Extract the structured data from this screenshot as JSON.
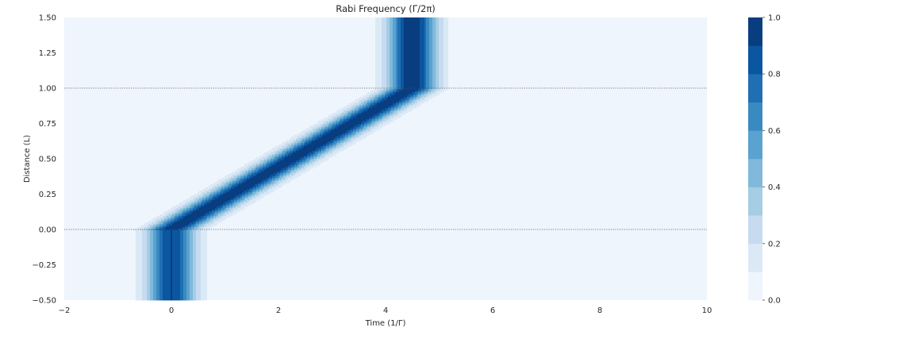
{
  "chart_data": {
    "type": "heatmap",
    "subtype": "filled-contour",
    "title": "Rabi Frequency (Γ/2π)",
    "xlabel": "Time (1/Γ)",
    "ylabel": "Distance (L)",
    "xlim": [
      -2,
      10
    ],
    "ylim": [
      -0.5,
      1.5
    ],
    "x_ticks": [
      -2,
      0,
      2,
      4,
      6,
      8,
      10
    ],
    "y_ticks": [
      -0.5,
      -0.25,
      0.0,
      0.25,
      0.5,
      0.75,
      1.0,
      1.25,
      1.5
    ],
    "x_tick_labels": [
      "−2",
      "0",
      "2",
      "4",
      "6",
      "8",
      "10"
    ],
    "y_tick_labels": [
      "−0.50",
      "−0.25",
      "0.00",
      "0.25",
      "0.50",
      "0.75",
      "1.00",
      "1.25",
      "1.50"
    ],
    "colormap": "Blues",
    "contour_levels": [
      0.0,
      0.1,
      0.2,
      0.3,
      0.4,
      0.5,
      0.6,
      0.7,
      0.8,
      0.9,
      1.0
    ],
    "level_colors": [
      "#eef5fc",
      "#dbe9f6",
      "#c6dbef",
      "#a5cde3",
      "#80b9db",
      "#5aa2cf",
      "#3a8ac2",
      "#206fb3",
      "#0b56a0",
      "#083d7f"
    ],
    "reference_lines": [
      {
        "axis": "y",
        "value": 0.0,
        "style": "dotted"
      },
      {
        "axis": "y",
        "value": 1.0,
        "style": "dotted"
      }
    ],
    "field": {
      "description_pulse_regions": [
        {
          "y_range": [
            -0.5,
            0.0
          ],
          "center_time": 0.0,
          "peak": 0.9
        },
        {
          "y_range": [
            0.0,
            1.0
          ],
          "center_time_at_y0": 0.0,
          "center_time_at_y1": 4.5,
          "peak": 1.0
        },
        {
          "y_range": [
            1.0,
            1.5
          ],
          "center_time": 4.5,
          "peak": 1.0
        }
      ],
      "pulse_width": 0.45
    },
    "colorbar": {
      "ticks": [
        0.0,
        0.2,
        0.4,
        0.6,
        0.8,
        1.0
      ],
      "tick_labels": [
        "0.0",
        "0.2",
        "0.4",
        "0.6",
        "0.8",
        "1.0"
      ]
    },
    "grid": false
  }
}
